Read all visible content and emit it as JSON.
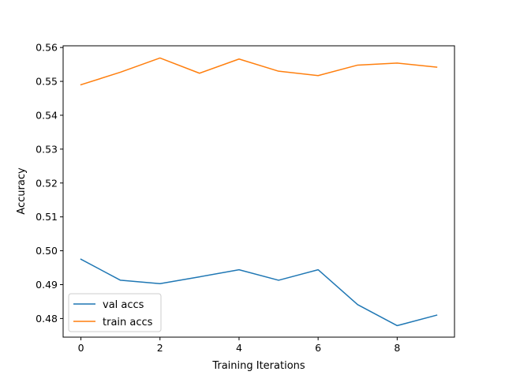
{
  "chart_data": {
    "type": "line",
    "title": "",
    "xlabel": "Training Iterations",
    "ylabel": "Accuracy",
    "xlim": [
      -0.45,
      9.45
    ],
    "ylim": [
      0.4745,
      0.5605
    ],
    "x": [
      0,
      1,
      2,
      3,
      4,
      5,
      6,
      7,
      8,
      9
    ],
    "xticks": [
      0,
      2,
      4,
      6,
      8
    ],
    "xtick_labels": [
      "0",
      "2",
      "4",
      "6",
      "8"
    ],
    "yticks": [
      0.48,
      0.49,
      0.5,
      0.51,
      0.52,
      0.53,
      0.54,
      0.55,
      0.56
    ],
    "ytick_labels": [
      "0.48",
      "0.49",
      "0.50",
      "0.51",
      "0.52",
      "0.53",
      "0.54",
      "0.55",
      "0.56"
    ],
    "grid": false,
    "legend_position": "bottom-left",
    "series": [
      {
        "name": "val accs",
        "color": "#1f77b4",
        "values": [
          0.4975,
          0.4913,
          0.4903,
          0.4923,
          0.4944,
          0.4913,
          0.4944,
          0.4841,
          0.4779,
          0.481
        ]
      },
      {
        "name": "train accs",
        "color": "#ff7f0e",
        "values": [
          0.549,
          0.5527,
          0.5569,
          0.5524,
          0.5566,
          0.553,
          0.5517,
          0.5548,
          0.5554,
          0.5542
        ]
      }
    ]
  }
}
